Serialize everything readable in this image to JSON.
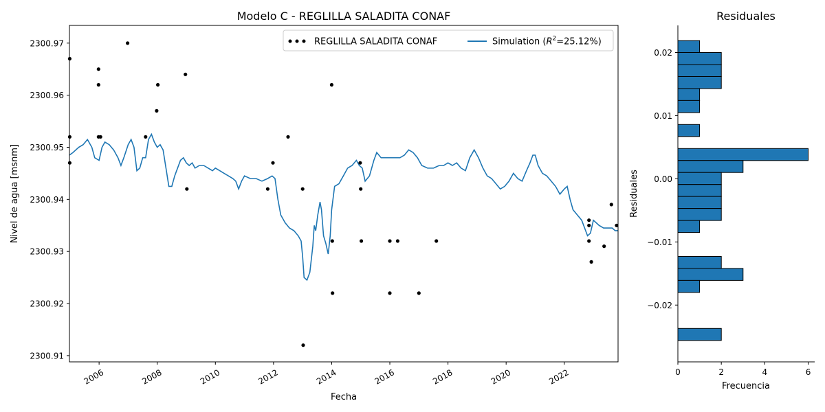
{
  "chart_data": [
    {
      "type": "line",
      "title": "Modelo C - REGLILLA SALADITA CONAF",
      "xlabel": "Fecha",
      "ylabel": "Nivel de agua [msnm]",
      "xlim": [
        2004.98,
        2023.85
      ],
      "ylim": [
        2300.9088,
        2300.9734
      ],
      "x_ticks": [
        2006,
        2008,
        2010,
        2012,
        2014,
        2016,
        2018,
        2020,
        2022
      ],
      "y_ticks": [
        2300.91,
        2300.92,
        2300.93,
        2300.94,
        2300.95,
        2300.96,
        2300.97
      ],
      "grid": false,
      "legend_position": "top-right",
      "legend": {
        "obs_label": "REGLILLA SALADITA CONAF",
        "sim_label_prefix": "Simulation (",
        "sim_label_r2": "R",
        "sim_label_sup": "2",
        "sim_label_suffix": "=25.12%)"
      },
      "series": [
        {
          "name": "REGLILLA SALADITA CONAF",
          "type": "scatter",
          "color": "#000000",
          "points": [
            [
              2004.99,
              2300.967
            ],
            [
              2004.99,
              2300.952
            ],
            [
              2004.99,
              2300.947
            ],
            [
              2005.98,
              2300.965
            ],
            [
              2005.98,
              2300.962
            ],
            [
              2005.98,
              2300.952
            ],
            [
              2006.05,
              2300.952
            ],
            [
              2006.98,
              2300.97
            ],
            [
              2007.6,
              2300.952
            ],
            [
              2007.98,
              2300.957
            ],
            [
              2008.02,
              2300.962
            ],
            [
              2008.97,
              2300.964
            ],
            [
              2009.02,
              2300.942
            ],
            [
              2011.8,
              2300.942
            ],
            [
              2011.98,
              2300.947
            ],
            [
              2012.5,
              2300.952
            ],
            [
              2013.0,
              2300.942
            ],
            [
              2013.02,
              2300.912
            ],
            [
              2014.0,
              2300.962
            ],
            [
              2014.02,
              2300.932
            ],
            [
              2014.03,
              2300.922
            ],
            [
              2014.98,
              2300.947
            ],
            [
              2015.0,
              2300.942
            ],
            [
              2015.02,
              2300.932
            ],
            [
              2016.0,
              2300.932
            ],
            [
              2016.0,
              2300.922
            ],
            [
              2016.27,
              2300.932
            ],
            [
              2017.0,
              2300.922
            ],
            [
              2017.6,
              2300.932
            ],
            [
              2022.85,
              2300.936
            ],
            [
              2022.85,
              2300.935
            ],
            [
              2022.85,
              2300.932
            ],
            [
              2022.93,
              2300.928
            ],
            [
              2023.37,
              2300.931
            ],
            [
              2023.62,
              2300.939
            ],
            [
              2023.8,
              2300.935
            ]
          ]
        },
        {
          "name": "Simulation",
          "type": "line",
          "color": "#1f77b4",
          "points": [
            [
              2004.98,
              2300.9485
            ],
            [
              2005.1,
              2300.949
            ],
            [
              2005.3,
              2300.95
            ],
            [
              2005.45,
              2300.9505
            ],
            [
              2005.6,
              2300.9515
            ],
            [
              2005.75,
              2300.95
            ],
            [
              2005.85,
              2300.948
            ],
            [
              2006.0,
              2300.9475
            ],
            [
              2006.1,
              2300.95
            ],
            [
              2006.2,
              2300.951
            ],
            [
              2006.35,
              2300.9505
            ],
            [
              2006.5,
              2300.9495
            ],
            [
              2006.65,
              2300.948
            ],
            [
              2006.75,
              2300.9465
            ],
            [
              2006.85,
              2300.948
            ],
            [
              2007.0,
              2300.9505
            ],
            [
              2007.1,
              2300.9515
            ],
            [
              2007.2,
              2300.95
            ],
            [
              2007.3,
              2300.9455
            ],
            [
              2007.4,
              2300.946
            ],
            [
              2007.5,
              2300.948
            ],
            [
              2007.6,
              2300.948
            ],
            [
              2007.7,
              2300.9515
            ],
            [
              2007.8,
              2300.9525
            ],
            [
              2007.9,
              2300.951
            ],
            [
              2008.0,
              2300.95
            ],
            [
              2008.1,
              2300.9505
            ],
            [
              2008.2,
              2300.9495
            ],
            [
              2008.3,
              2300.946
            ],
            [
              2008.4,
              2300.9425
            ],
            [
              2008.5,
              2300.9425
            ],
            [
              2008.6,
              2300.9445
            ],
            [
              2008.7,
              2300.946
            ],
            [
              2008.8,
              2300.9475
            ],
            [
              2008.9,
              2300.948
            ],
            [
              2009.0,
              2300.947
            ],
            [
              2009.1,
              2300.9465
            ],
            [
              2009.2,
              2300.947
            ],
            [
              2009.3,
              2300.946
            ],
            [
              2009.45,
              2300.9465
            ],
            [
              2009.6,
              2300.9465
            ],
            [
              2009.75,
              2300.946
            ],
            [
              2009.9,
              2300.9455
            ],
            [
              2010.0,
              2300.946
            ],
            [
              2010.15,
              2300.9455
            ],
            [
              2010.3,
              2300.945
            ],
            [
              2010.45,
              2300.9445
            ],
            [
              2010.6,
              2300.944
            ],
            [
              2010.7,
              2300.9435
            ],
            [
              2010.8,
              2300.942
            ],
            [
              2010.9,
              2300.9435
            ],
            [
              2011.0,
              2300.9445
            ],
            [
              2011.2,
              2300.944
            ],
            [
              2011.4,
              2300.944
            ],
            [
              2011.6,
              2300.9435
            ],
            [
              2011.8,
              2300.944
            ],
            [
              2011.95,
              2300.9445
            ],
            [
              2012.05,
              2300.944
            ],
            [
              2012.15,
              2300.94
            ],
            [
              2012.25,
              2300.937
            ],
            [
              2012.4,
              2300.9355
            ],
            [
              2012.55,
              2300.9345
            ],
            [
              2012.7,
              2300.934
            ],
            [
              2012.85,
              2300.933
            ],
            [
              2012.95,
              2300.932
            ],
            [
              2013.0,
              2300.929
            ],
            [
              2013.05,
              2300.925
            ],
            [
              2013.15,
              2300.9245
            ],
            [
              2013.25,
              2300.926
            ],
            [
              2013.35,
              2300.931
            ],
            [
              2013.4,
              2300.935
            ],
            [
              2013.45,
              2300.934
            ],
            [
              2013.52,
              2300.937
            ],
            [
              2013.6,
              2300.9395
            ],
            [
              2013.65,
              2300.938
            ],
            [
              2013.72,
              2300.933
            ],
            [
              2013.8,
              2300.9315
            ],
            [
              2013.88,
              2300.9295
            ],
            [
              2013.95,
              2300.933
            ],
            [
              2014.0,
              2300.938
            ],
            [
              2014.1,
              2300.9425
            ],
            [
              2014.25,
              2300.943
            ],
            [
              2014.4,
              2300.9445
            ],
            [
              2014.55,
              2300.946
            ],
            [
              2014.7,
              2300.9465
            ],
            [
              2014.85,
              2300.9475
            ],
            [
              2014.95,
              2300.9465
            ],
            [
              2015.05,
              2300.946
            ],
            [
              2015.15,
              2300.9435
            ],
            [
              2015.3,
              2300.9445
            ],
            [
              2015.45,
              2300.9475
            ],
            [
              2015.55,
              2300.949
            ],
            [
              2015.7,
              2300.948
            ],
            [
              2015.85,
              2300.948
            ],
            [
              2016.0,
              2300.948
            ],
            [
              2016.2,
              2300.948
            ],
            [
              2016.35,
              2300.948
            ],
            [
              2016.5,
              2300.9485
            ],
            [
              2016.65,
              2300.9495
            ],
            [
              2016.8,
              2300.949
            ],
            [
              2016.95,
              2300.948
            ],
            [
              2017.1,
              2300.9465
            ],
            [
              2017.3,
              2300.946
            ],
            [
              2017.5,
              2300.946
            ],
            [
              2017.7,
              2300.9465
            ],
            [
              2017.85,
              2300.9465
            ],
            [
              2018.0,
              2300.947
            ],
            [
              2018.15,
              2300.9465
            ],
            [
              2018.3,
              2300.947
            ],
            [
              2018.45,
              2300.946
            ],
            [
              2018.6,
              2300.9455
            ],
            [
              2018.75,
              2300.948
            ],
            [
              2018.9,
              2300.9495
            ],
            [
              2019.05,
              2300.948
            ],
            [
              2019.2,
              2300.946
            ],
            [
              2019.35,
              2300.9445
            ],
            [
              2019.5,
              2300.944
            ],
            [
              2019.65,
              2300.943
            ],
            [
              2019.8,
              2300.942
            ],
            [
              2019.95,
              2300.9425
            ],
            [
              2020.1,
              2300.9435
            ],
            [
              2020.25,
              2300.945
            ],
            [
              2020.4,
              2300.944
            ],
            [
              2020.55,
              2300.9435
            ],
            [
              2020.7,
              2300.9455
            ],
            [
              2020.82,
              2300.947
            ],
            [
              2020.92,
              2300.9485
            ],
            [
              2021.0,
              2300.9485
            ],
            [
              2021.1,
              2300.9465
            ],
            [
              2021.25,
              2300.945
            ],
            [
              2021.4,
              2300.9445
            ],
            [
              2021.55,
              2300.9435
            ],
            [
              2021.7,
              2300.9425
            ],
            [
              2021.85,
              2300.941
            ],
            [
              2022.0,
              2300.942
            ],
            [
              2022.1,
              2300.9425
            ],
            [
              2022.2,
              2300.94
            ],
            [
              2022.3,
              2300.938
            ],
            [
              2022.45,
              2300.937
            ],
            [
              2022.6,
              2300.936
            ],
            [
              2022.7,
              2300.9345
            ],
            [
              2022.8,
              2300.933
            ],
            [
              2022.9,
              2300.9335
            ],
            [
              2023.0,
              2300.936
            ],
            [
              2023.1,
              2300.9355
            ],
            [
              2023.2,
              2300.935
            ],
            [
              2023.35,
              2300.9345
            ],
            [
              2023.5,
              2300.9345
            ],
            [
              2023.65,
              2300.9345
            ],
            [
              2023.75,
              2300.934
            ],
            [
              2023.85,
              2300.934
            ]
          ]
        }
      ]
    },
    {
      "type": "bar",
      "orientation": "horizontal",
      "title": "Residuales",
      "xlabel": "Frecuencia",
      "ylabel": "Residuales",
      "xlim": [
        0,
        6.3
      ],
      "ylim": [
        -0.029,
        0.0243
      ],
      "x_ticks": [
        0,
        2,
        4,
        6
      ],
      "y_ticks": [
        -0.02,
        -0.01,
        0.0,
        0.01,
        0.02
      ],
      "y_tick_labels": [
        "−0.02",
        "−0.01",
        "0.00",
        "0.01",
        "0.02"
      ],
      "bar_color": "#1f77b4",
      "bins": [
        {
          "from": 0.02,
          "to": 0.0219,
          "count": 1
        },
        {
          "from": 0.0181,
          "to": 0.02,
          "count": 2
        },
        {
          "from": 0.0162,
          "to": 0.0181,
          "count": 2
        },
        {
          "from": 0.0143,
          "to": 0.0162,
          "count": 2
        },
        {
          "from": 0.0124,
          "to": 0.0143,
          "count": 1
        },
        {
          "from": 0.0105,
          "to": 0.0124,
          "count": 1
        },
        {
          "from": 0.0067,
          "to": 0.0086,
          "count": 1
        },
        {
          "from": 0.0029,
          "to": 0.0048,
          "count": 6
        },
        {
          "from": 0.001,
          "to": 0.0029,
          "count": 3
        },
        {
          "from": -0.0009,
          "to": 0.001,
          "count": 2
        },
        {
          "from": -0.0028,
          "to": -0.0009,
          "count": 2
        },
        {
          "from": -0.0047,
          "to": -0.0028,
          "count": 2
        },
        {
          "from": -0.0066,
          "to": -0.0047,
          "count": 2
        },
        {
          "from": -0.0085,
          "to": -0.0066,
          "count": 1
        },
        {
          "from": -0.0142,
          "to": -0.0123,
          "count": 2
        },
        {
          "from": -0.0161,
          "to": -0.0142,
          "count": 3
        },
        {
          "from": -0.018,
          "to": -0.0161,
          "count": 1
        },
        {
          "from": -0.0256,
          "to": -0.0237,
          "count": 2
        }
      ]
    }
  ]
}
